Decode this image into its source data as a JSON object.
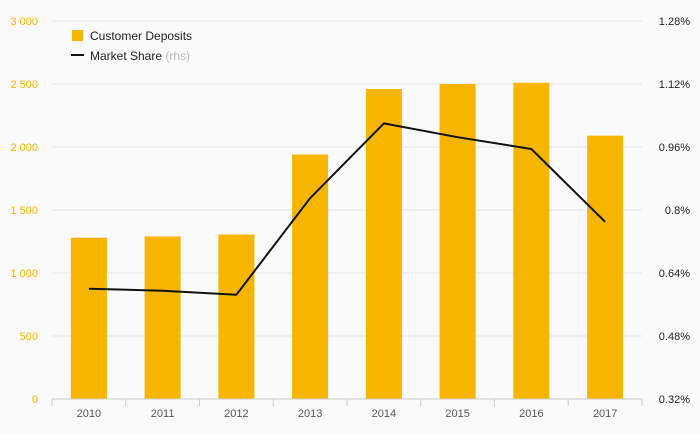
{
  "chart_data": {
    "type": "bar",
    "categories": [
      "2010",
      "2011",
      "2012",
      "2013",
      "2014",
      "2015",
      "2016",
      "2017"
    ],
    "series": [
      {
        "name": "Customer Deposits",
        "type": "bar",
        "axis": "left",
        "color": "#f7b500",
        "values": [
          1280,
          1290,
          1305,
          1940,
          2460,
          2500,
          2510,
          2090
        ]
      },
      {
        "name": "Market Share",
        "name_suffix": "(rhs)",
        "type": "line",
        "axis": "right",
        "color": "#111111",
        "values": [
          0.6,
          0.595,
          0.585,
          0.83,
          1.02,
          0.985,
          0.955,
          0.77
        ]
      }
    ],
    "y_left": {
      "lim": [
        0,
        3000
      ],
      "ticks": [
        0,
        500,
        1000,
        1500,
        2000,
        2500,
        3000
      ],
      "tick_labels": [
        "0",
        "500",
        "1 000",
        "1 500",
        "2 000",
        "2 500",
        "3 000"
      ],
      "color": "#f5b400"
    },
    "y_right": {
      "lim": [
        0.32,
        1.28
      ],
      "ticks": [
        0.32,
        0.48,
        0.64,
        0.8,
        0.96,
        1.12,
        1.28
      ],
      "tick_labels": [
        "0.32%",
        "0.48%",
        "0.64%",
        "0.8%",
        "0.96%",
        "1.12%",
        "1.28%"
      ]
    },
    "grid": true,
    "legend": "top-left"
  }
}
